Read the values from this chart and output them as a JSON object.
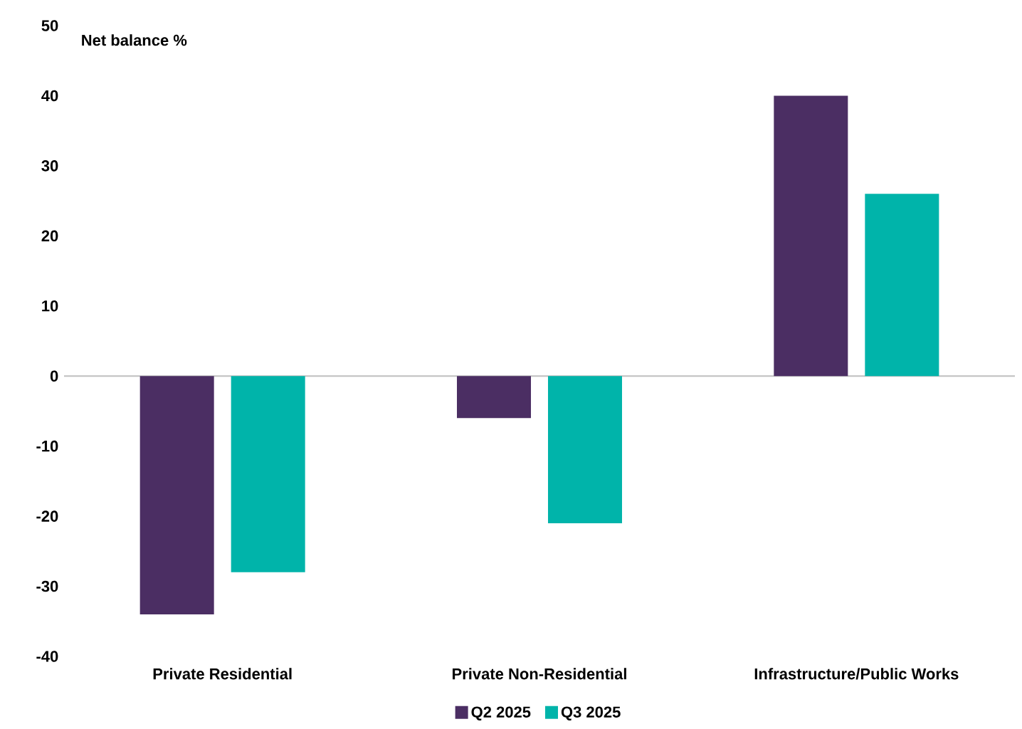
{
  "chart_data": {
    "type": "bar",
    "ylabel": "Net balance %",
    "categories": [
      "Private Residential",
      "Private Non-Residential",
      "Infrastructure/Public Works"
    ],
    "series": [
      {
        "name": "Q2 2025",
        "color": "#4b2e63",
        "values": [
          -34,
          -6,
          40
        ]
      },
      {
        "name": "Q3 2025",
        "color": "#00b4aa",
        "values": [
          -28,
          -21,
          26
        ]
      }
    ],
    "ylim": [
      -40,
      50
    ],
    "yticks": [
      -40,
      -30,
      -20,
      -10,
      0,
      10,
      20,
      30,
      40,
      50
    ],
    "ref_lines": [
      {
        "axis": "y",
        "value": 0,
        "color": "#bfbfbf"
      }
    ],
    "legend": "bottom",
    "grid": false
  }
}
